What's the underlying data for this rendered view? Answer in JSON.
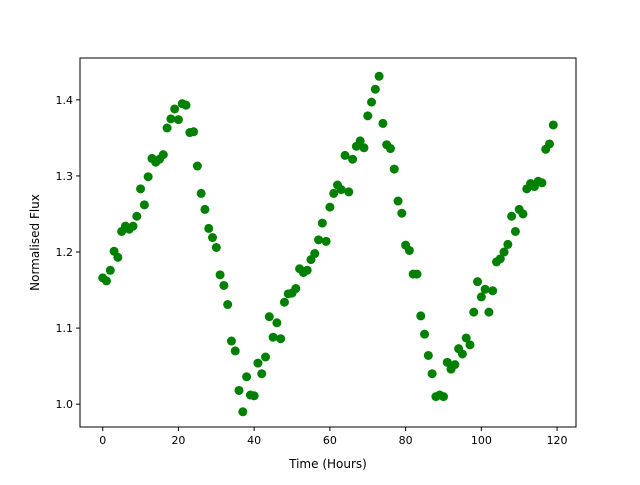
{
  "chart_data": {
    "type": "scatter",
    "title": "",
    "xlabel": "Time (Hours)",
    "ylabel": "Normalised Flux",
    "xlim": [
      -6,
      125
    ],
    "ylim": [
      0.97,
      1.455
    ],
    "xticks": [
      0,
      20,
      40,
      60,
      80,
      100,
      120
    ],
    "yticks": [
      1.0,
      1.1,
      1.2,
      1.3,
      1.4
    ],
    "xtick_labels": [
      "0",
      "20",
      "40",
      "60",
      "80",
      "100",
      "120"
    ],
    "ytick_labels": [
      "1.0",
      "1.1",
      "1.2",
      "1.3",
      "1.4"
    ],
    "grid": false,
    "marker_color": "#008000",
    "series": [
      {
        "name": "",
        "points": [
          [
            0,
            1.166
          ],
          [
            1,
            1.162
          ],
          [
            2,
            1.176
          ],
          [
            3,
            1.201
          ],
          [
            4,
            1.193
          ],
          [
            5,
            1.227
          ],
          [
            6,
            1.234
          ],
          [
            7,
            1.23
          ],
          [
            8,
            1.234
          ],
          [
            9,
            1.247
          ],
          [
            10,
            1.283
          ],
          [
            11,
            1.262
          ],
          [
            12,
            1.299
          ],
          [
            13,
            1.323
          ],
          [
            14,
            1.318
          ],
          [
            15,
            1.322
          ],
          [
            16,
            1.328
          ],
          [
            17,
            1.363
          ],
          [
            18,
            1.375
          ],
          [
            19,
            1.388
          ],
          [
            20,
            1.374
          ],
          [
            21,
            1.395
          ],
          [
            22,
            1.393
          ],
          [
            23,
            1.357
          ],
          [
            24,
            1.358
          ],
          [
            25,
            1.313
          ],
          [
            26,
            1.277
          ],
          [
            27,
            1.256
          ],
          [
            28,
            1.231
          ],
          [
            29,
            1.219
          ],
          [
            30,
            1.206
          ],
          [
            31,
            1.17
          ],
          [
            32,
            1.156
          ],
          [
            33,
            1.131
          ],
          [
            34,
            1.083
          ],
          [
            35,
            1.07
          ],
          [
            36,
            1.018
          ],
          [
            37,
            0.99
          ],
          [
            38,
            1.036
          ],
          [
            39,
            1.012
          ],
          [
            40,
            1.011
          ],
          [
            41,
            1.054
          ],
          [
            42,
            1.04
          ],
          [
            43,
            1.062
          ],
          [
            44,
            1.115
          ],
          [
            45,
            1.088
          ],
          [
            46,
            1.107
          ],
          [
            47,
            1.086
          ],
          [
            48,
            1.134
          ],
          [
            49,
            1.145
          ],
          [
            50,
            1.146
          ],
          [
            51,
            1.152
          ],
          [
            52,
            1.178
          ],
          [
            53,
            1.173
          ],
          [
            54,
            1.176
          ],
          [
            55,
            1.19
          ],
          [
            56,
            1.198
          ],
          [
            57,
            1.216
          ],
          [
            58,
            1.238
          ],
          [
            59,
            1.214
          ],
          [
            60,
            1.259
          ],
          [
            61,
            1.277
          ],
          [
            62,
            1.288
          ],
          [
            63,
            1.282
          ],
          [
            64,
            1.327
          ],
          [
            65,
            1.279
          ],
          [
            66,
            1.322
          ],
          [
            67,
            1.339
          ],
          [
            68,
            1.346
          ],
          [
            69,
            1.337
          ],
          [
            70,
            1.379
          ],
          [
            71,
            1.397
          ],
          [
            72,
            1.414
          ],
          [
            73,
            1.431
          ],
          [
            74,
            1.369
          ],
          [
            75,
            1.341
          ],
          [
            76,
            1.336
          ],
          [
            77,
            1.309
          ],
          [
            78,
            1.267
          ],
          [
            79,
            1.251
          ],
          [
            80,
            1.209
          ],
          [
            81,
            1.202
          ],
          [
            82,
            1.171
          ],
          [
            83,
            1.171
          ],
          [
            84,
            1.116
          ],
          [
            85,
            1.092
          ],
          [
            86,
            1.064
          ],
          [
            87,
            1.04
          ],
          [
            88,
            1.01
          ],
          [
            89,
            1.012
          ],
          [
            90,
            1.01
          ],
          [
            91,
            1.055
          ],
          [
            92,
            1.046
          ],
          [
            93,
            1.052
          ],
          [
            94,
            1.073
          ],
          [
            95,
            1.066
          ],
          [
            96,
            1.087
          ],
          [
            97,
            1.078
          ],
          [
            98,
            1.121
          ],
          [
            99,
            1.161
          ],
          [
            100,
            1.141
          ],
          [
            101,
            1.151
          ],
          [
            102,
            1.121
          ],
          [
            103,
            1.149
          ],
          [
            104,
            1.187
          ],
          [
            105,
            1.191
          ],
          [
            106,
            1.2
          ],
          [
            107,
            1.21
          ],
          [
            108,
            1.247
          ],
          [
            109,
            1.227
          ],
          [
            110,
            1.256
          ],
          [
            111,
            1.25
          ],
          [
            112,
            1.283
          ],
          [
            113,
            1.29
          ],
          [
            114,
            1.286
          ],
          [
            115,
            1.293
          ],
          [
            116,
            1.291
          ],
          [
            117,
            1.335
          ],
          [
            118,
            1.342
          ],
          [
            119,
            1.367
          ]
        ]
      }
    ]
  }
}
